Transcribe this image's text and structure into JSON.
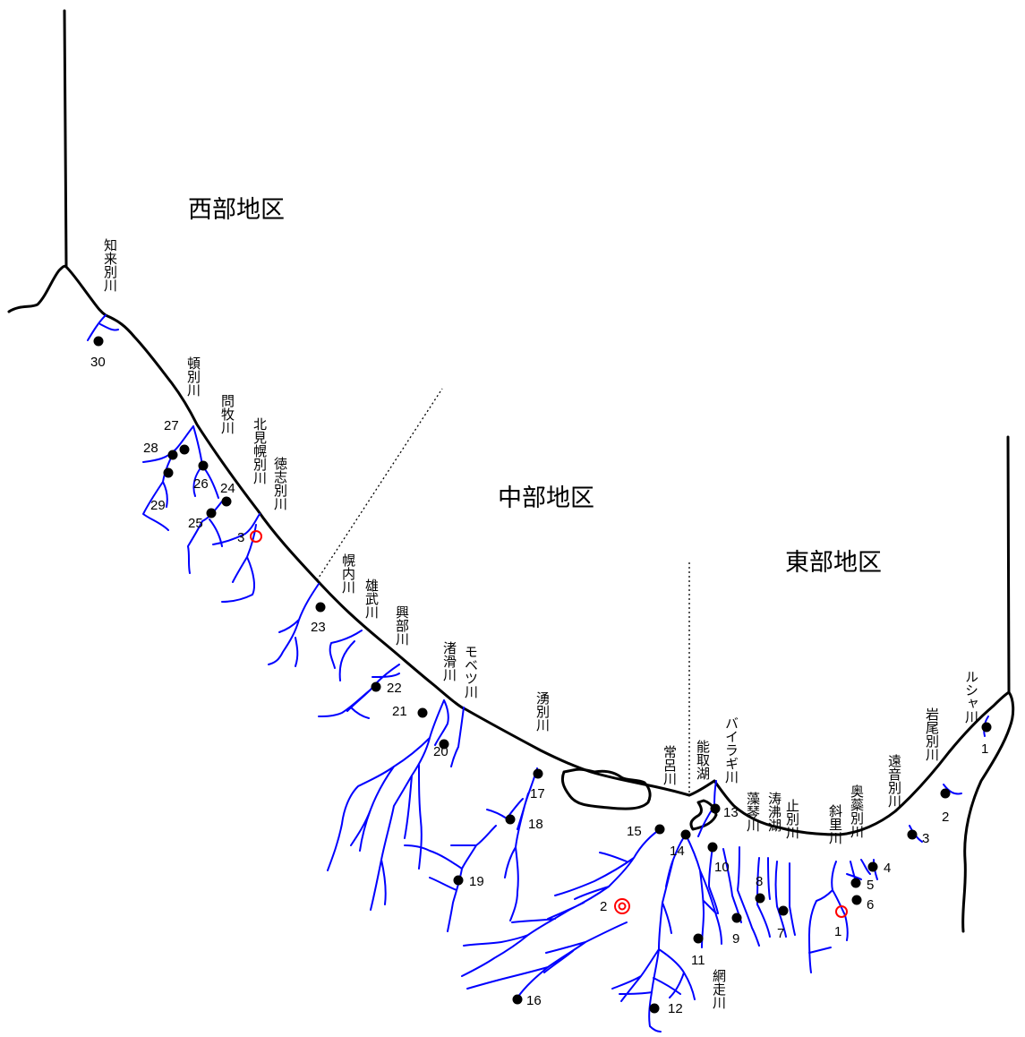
{
  "colors": {
    "coast": "#000000",
    "river": "#0000ff",
    "station": "#000000",
    "marker": "#ff0000"
  },
  "regions": {
    "west": "西部地区",
    "central": "中部地区",
    "east": "東部地区"
  },
  "rivers": {
    "shiriba": "知来別川",
    "tonbetsu": "頓別川",
    "monmaki": "問牧川",
    "kitamihorobetsu": "北見幌別川",
    "tokushibetsu": "徳志別川",
    "horonai": "幌内川",
    "omu": "雄武川",
    "okoppe": "興部川",
    "nameri": "渚滑川",
    "mobetsu": "モベツ川",
    "yubetsu": "湧別川",
    "tokoro": "常呂川",
    "notoro": "能取湖",
    "bairagi": "バイラギ川",
    "mokoto": "藻琴川",
    "tofutsu": "涛沸湖",
    "yamubetsu": "止別川",
    "shari": "斜里川",
    "okushibetsu": "奥蘂別川",
    "ontobetsu": "遠音別川",
    "iwaobetsu": "岩尾別川",
    "rusha": "ルシャ川",
    "abashiri": "網走川"
  },
  "stations": {
    "s1": "1",
    "s2": "2",
    "s3": "3",
    "s4": "4",
    "s5": "5",
    "s6": "6",
    "s7": "7",
    "s8": "8",
    "s9": "9",
    "s10": "10",
    "s11": "11",
    "s12": "12",
    "s13": "13",
    "s14": "14",
    "s15": "15",
    "s16": "16",
    "s17": "17",
    "s18": "18",
    "s19": "19",
    "s20": "20",
    "s21": "21",
    "s22": "22",
    "s23": "23",
    "s24": "24",
    "s25": "25",
    "s26": "26",
    "s27": "27",
    "s28": "28",
    "s29": "29",
    "s30": "30"
  },
  "markers": {
    "east_open": "1",
    "central_double": "2",
    "west_open": "3"
  }
}
